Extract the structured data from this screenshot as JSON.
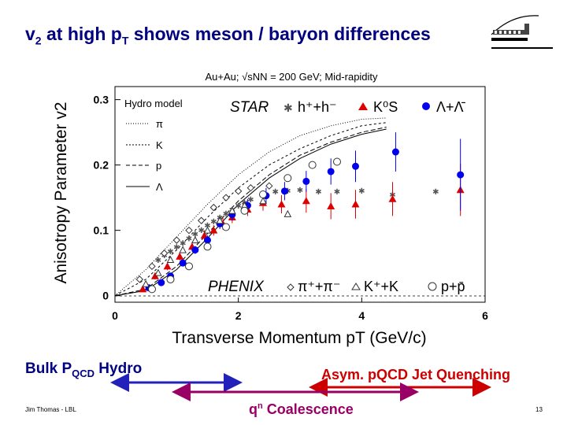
{
  "slide": {
    "title_v": "v",
    "title_sub2": "2",
    "title_mid": " at high p",
    "title_subT": "T",
    "title_rest": " shows meson / baryon differences",
    "bulk_main": "Bulk P",
    "bulk_sub": "QCD",
    "bulk_rest": " Hydro",
    "asym_label": "Asym. pQCD Jet Quenching",
    "coal_q": "q",
    "coal_sup": "n",
    "coal_rest": " Coalescence",
    "footer": "Jim Thomas - LBL",
    "page_number": "13"
  },
  "colors": {
    "title": "#000080",
    "blue": "#0000ee",
    "red": "#dd0000",
    "dark_blue": "#2222bb",
    "purple": "#990066",
    "asym_red": "#cc0000"
  },
  "chart_data": {
    "type": "scatter",
    "title": "Au+Au; √sNN = 200 GeV; Mid-rapidity",
    "xlabel": "Transverse Momentum pT (GeV/c)",
    "ylabel": "Anisotropy Parameter v2",
    "xlim": [
      0,
      6
    ],
    "ylim": [
      -0.01,
      0.32
    ],
    "xticks": [
      "0",
      "2",
      "4",
      "6"
    ],
    "yticks": [
      "0",
      "0.1",
      "0.2",
      "0.3"
    ],
    "grid": false,
    "legend_hydro": {
      "heading": "Hydro model",
      "entries": [
        "π",
        "K",
        "p",
        "Λ"
      ]
    },
    "legend_star": {
      "heading": "STAR",
      "entries": [
        "h⁺+h⁻",
        "K⁰S",
        "Λ+Λ̄"
      ]
    },
    "legend_phenix": {
      "heading": "PHENIX",
      "entries": [
        "π⁺+π⁻",
        "K⁺+K",
        "p+p̄"
      ]
    },
    "series": [
      {
        "name": "h⁺+h⁻",
        "color": "#555555",
        "marker": "star",
        "points": [
          [
            0.7,
            0.055
          ],
          [
            0.8,
            0.062
          ],
          [
            0.9,
            0.068
          ],
          [
            1.0,
            0.075
          ],
          [
            1.1,
            0.081
          ],
          [
            1.2,
            0.088
          ],
          [
            1.3,
            0.095
          ],
          [
            1.4,
            0.101
          ],
          [
            1.5,
            0.108
          ],
          [
            1.6,
            0.114
          ],
          [
            1.7,
            0.12
          ],
          [
            1.8,
            0.126
          ],
          [
            1.9,
            0.132
          ],
          [
            2.0,
            0.138
          ],
          [
            2.1,
            0.143
          ],
          [
            2.2,
            0.148
          ],
          [
            2.4,
            0.156
          ],
          [
            2.6,
            0.16
          ],
          [
            2.8,
            0.161
          ],
          [
            3.0,
            0.162
          ],
          [
            3.3,
            0.16
          ],
          [
            3.6,
            0.16
          ],
          [
            4.0,
            0.161
          ],
          [
            4.5,
            0.155
          ],
          [
            5.2,
            0.16
          ]
        ]
      },
      {
        "name": "K⁰S",
        "color": "#dd0000",
        "marker": "triangle-up",
        "points": [
          [
            0.45,
            0.01
          ],
          [
            0.65,
            0.03
          ],
          [
            0.85,
            0.045
          ],
          [
            1.05,
            0.06
          ],
          [
            1.25,
            0.075
          ],
          [
            1.45,
            0.092
          ],
          [
            1.6,
            0.1
          ],
          [
            1.75,
            0.11
          ],
          [
            1.9,
            0.12
          ],
          [
            2.15,
            0.132
          ],
          [
            2.4,
            0.142
          ],
          [
            2.7,
            0.14
          ],
          [
            3.1,
            0.145
          ],
          [
            3.5,
            0.137
          ],
          [
            3.9,
            0.14
          ],
          [
            4.5,
            0.148
          ],
          [
            5.6,
            0.162
          ]
        ],
        "err": [
          0.004,
          0.005,
          0.006,
          0.006,
          0.007,
          0.008,
          0.008,
          0.009,
          0.009,
          0.01,
          0.012,
          0.014,
          0.018,
          0.02,
          0.022,
          0.026,
          0.04
        ]
      },
      {
        "name": "Λ+Λ̄",
        "color": "#0000ee",
        "marker": "circle-filled",
        "points": [
          [
            0.55,
            0.012
          ],
          [
            0.75,
            0.02
          ],
          [
            0.9,
            0.03
          ],
          [
            1.1,
            0.05
          ],
          [
            1.3,
            0.07
          ],
          [
            1.5,
            0.085
          ],
          [
            1.7,
            0.11
          ],
          [
            1.9,
            0.124
          ],
          [
            2.15,
            0.138
          ],
          [
            2.45,
            0.153
          ],
          [
            2.75,
            0.16
          ],
          [
            3.1,
            0.175
          ],
          [
            3.5,
            0.19
          ],
          [
            3.9,
            0.198
          ],
          [
            4.55,
            0.22
          ],
          [
            5.6,
            0.185
          ]
        ],
        "err": [
          0.004,
          0.004,
          0.005,
          0.005,
          0.006,
          0.007,
          0.008,
          0.009,
          0.01,
          0.012,
          0.014,
          0.016,
          0.02,
          0.024,
          0.03,
          0.055
        ]
      },
      {
        "name": "π⁺+π⁻",
        "color": "#333333",
        "marker": "diamond-open",
        "points": [
          [
            0.4,
            0.025
          ],
          [
            0.6,
            0.045
          ],
          [
            0.8,
            0.065
          ],
          [
            1.0,
            0.085
          ],
          [
            1.2,
            0.1
          ],
          [
            1.4,
            0.115
          ],
          [
            1.6,
            0.135
          ],
          [
            1.8,
            0.15
          ],
          [
            2.0,
            0.16
          ],
          [
            2.2,
            0.165
          ],
          [
            2.5,
            0.168
          ]
        ]
      },
      {
        "name": "K⁺+K",
        "color": "#333333",
        "marker": "triangle-open",
        "points": [
          [
            0.5,
            0.018
          ],
          [
            0.7,
            0.035
          ],
          [
            0.9,
            0.055
          ],
          [
            1.1,
            0.07
          ],
          [
            1.3,
            0.085
          ],
          [
            1.5,
            0.1
          ],
          [
            1.7,
            0.115
          ],
          [
            1.9,
            0.13
          ],
          [
            2.1,
            0.138
          ],
          [
            2.4,
            0.145
          ],
          [
            2.8,
            0.125
          ]
        ]
      },
      {
        "name": "p+p̄",
        "color": "#333333",
        "marker": "circle-open",
        "points": [
          [
            0.6,
            0.01
          ],
          [
            0.9,
            0.025
          ],
          [
            1.2,
            0.045
          ],
          [
            1.5,
            0.075
          ],
          [
            1.8,
            0.105
          ],
          [
            2.1,
            0.13
          ],
          [
            2.4,
            0.155
          ],
          [
            2.8,
            0.18
          ],
          [
            3.2,
            0.2
          ],
          [
            3.6,
            0.205
          ]
        ]
      }
    ],
    "hydro_curves": [
      {
        "name": "π",
        "style": "dot",
        "points": [
          [
            0.0,
            0.0
          ],
          [
            0.5,
            0.04
          ],
          [
            1.0,
            0.09
          ],
          [
            1.5,
            0.14
          ],
          [
            2.0,
            0.185
          ],
          [
            2.5,
            0.22
          ],
          [
            3.0,
            0.245
          ],
          [
            3.5,
            0.26
          ],
          [
            4.0,
            0.27
          ],
          [
            4.4,
            0.272
          ]
        ]
      },
      {
        "name": "K",
        "style": "dash",
        "points": [
          [
            0.0,
            0.0
          ],
          [
            0.5,
            0.025
          ],
          [
            1.0,
            0.07
          ],
          [
            1.5,
            0.12
          ],
          [
            2.0,
            0.165
          ],
          [
            2.5,
            0.2
          ],
          [
            3.0,
            0.225
          ],
          [
            3.5,
            0.245
          ],
          [
            4.0,
            0.26
          ],
          [
            4.4,
            0.265
          ]
        ]
      },
      {
        "name": "p",
        "style": "dash-long",
        "points": [
          [
            0.0,
            0.0
          ],
          [
            0.5,
            0.01
          ],
          [
            1.0,
            0.045
          ],
          [
            1.5,
            0.095
          ],
          [
            2.0,
            0.145
          ],
          [
            2.5,
            0.185
          ],
          [
            3.0,
            0.215
          ],
          [
            3.5,
            0.235
          ],
          [
            4.0,
            0.25
          ],
          [
            4.4,
            0.258
          ]
        ]
      },
      {
        "name": "Λ",
        "style": "solid",
        "points": [
          [
            0.0,
            0.0
          ],
          [
            0.5,
            0.008
          ],
          [
            1.0,
            0.04
          ],
          [
            1.5,
            0.088
          ],
          [
            2.0,
            0.14
          ],
          [
            2.5,
            0.18
          ],
          [
            3.0,
            0.21
          ],
          [
            3.5,
            0.232
          ],
          [
            4.0,
            0.247
          ],
          [
            4.4,
            0.255
          ]
        ]
      }
    ]
  }
}
